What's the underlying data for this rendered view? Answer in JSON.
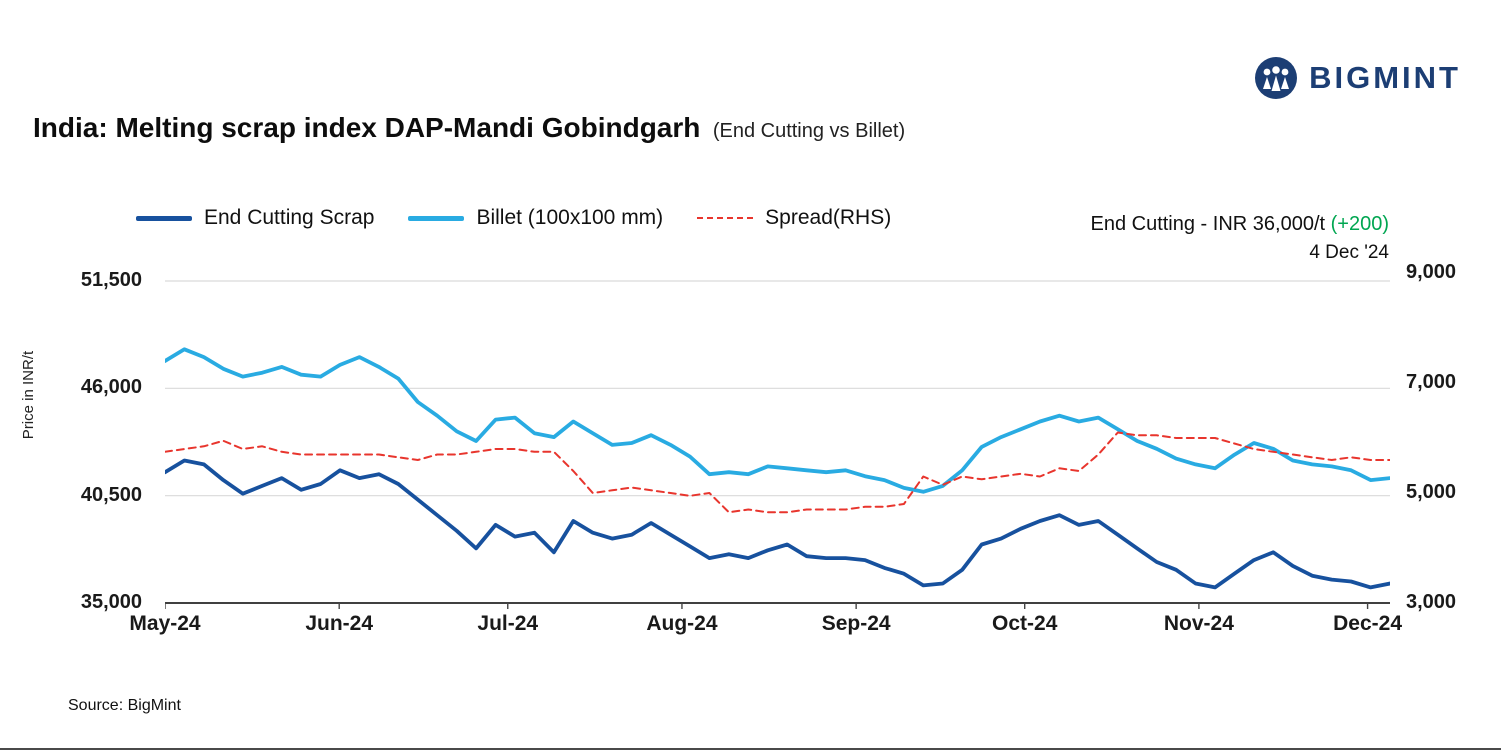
{
  "logo": {
    "text": "BIGMINT"
  },
  "header": {
    "title": "India: Melting scrap index DAP-Mandi Gobindgarh",
    "subtitle": "(End Cutting vs Billet)"
  },
  "legend": {
    "items": [
      {
        "label": "End Cutting Scrap"
      },
      {
        "label": "Billet (100x100 mm)"
      },
      {
        "label": "Spread(RHS)"
      }
    ]
  },
  "annotation": {
    "text": "End Cutting - INR 36,000/t ",
    "change": "(+200)",
    "change_color": "#00a651",
    "date": "4 Dec '24"
  },
  "axes": {
    "y_left_title": "Price in INR/t"
  },
  "footer": {
    "source": "Source: BigMint"
  },
  "colors": {
    "scrap_line": "#17519e",
    "billet_line": "#29abe2",
    "spread_line": "#e8352d",
    "grid": "#d9d9d9",
    "axis": "#000000",
    "logo_navy": "#1c3e74",
    "green": "#00a651"
  },
  "chart_data": {
    "type": "line",
    "title": "India: Melting scrap index DAP-Mandi Gobindgarh (End Cutting vs Billet)",
    "ylabel_left": "Price in INR/t",
    "grid": true,
    "legend_position": "top",
    "x_ticks": [
      {
        "label": "May-24",
        "f": 0.0
      },
      {
        "label": "Jun-24",
        "f": 0.1422
      },
      {
        "label": "Jul-24",
        "f": 0.2798
      },
      {
        "label": "Aug-24",
        "f": 0.422
      },
      {
        "label": "Sep-24",
        "f": 0.5642
      },
      {
        "label": "Oct-24",
        "f": 0.7018
      },
      {
        "label": "Nov-24",
        "f": 0.844
      },
      {
        "label": "Dec-24",
        "f": 0.9817
      }
    ],
    "y_left": {
      "min": 35000,
      "max": 51500,
      "ticks": [
        35000,
        40500,
        46000,
        51500
      ],
      "labels": [
        "35,000",
        "40,500",
        "46,000",
        "51,500"
      ]
    },
    "y_right": {
      "min": 3000,
      "max": 9000,
      "ticks": [
        3000,
        5000,
        7000,
        9000
      ],
      "labels": [
        "3,000",
        "5,000",
        "7,000",
        "9,000"
      ]
    },
    "series": [
      {
        "name": "End Cutting Scrap",
        "axis": "left",
        "color": "#17519e",
        "dash": null,
        "width": 3.8,
        "values": [
          41700,
          42300,
          42100,
          41300,
          40600,
          41000,
          41400,
          40800,
          41100,
          41800,
          41400,
          41600,
          41100,
          40300,
          39500,
          38700,
          37800,
          39000,
          38400,
          38600,
          37600,
          39200,
          38600,
          38300,
          38500,
          39100,
          38500,
          37900,
          37300,
          37500,
          37300,
          37700,
          38000,
          37400,
          37300,
          37300,
          37200,
          36800,
          36500,
          35900,
          36000,
          36700,
          38000,
          38300,
          38800,
          39200,
          39500,
          39000,
          39200,
          38500,
          37800,
          37100,
          36700,
          36000,
          35800,
          36500,
          37200,
          37600,
          36900,
          36400,
          36200,
          36100,
          35800,
          36000
        ]
      },
      {
        "name": "Billet (100x100 mm)",
        "axis": "left",
        "color": "#29abe2",
        "dash": null,
        "width": 3.8,
        "values": [
          47400,
          48000,
          47600,
          47000,
          46600,
          46800,
          47100,
          46700,
          46600,
          47200,
          47600,
          47100,
          46500,
          45300,
          44600,
          43800,
          43300,
          44400,
          44500,
          43700,
          43500,
          44300,
          43700,
          43100,
          43200,
          43600,
          43100,
          42500,
          41600,
          41700,
          41600,
          42000,
          41900,
          41800,
          41700,
          41800,
          41500,
          41300,
          40900,
          40700,
          41000,
          41800,
          43000,
          43500,
          43900,
          44300,
          44600,
          44300,
          44500,
          43900,
          43300,
          42900,
          42400,
          42100,
          41900,
          42600,
          43200,
          42900,
          42300,
          42100,
          42000,
          41800,
          41300,
          41400
        ]
      },
      {
        "name": "Spread(RHS)",
        "axis": "right",
        "color": "#e8352d",
        "dash": "7 5",
        "width": 2,
        "values": [
          5750,
          5800,
          5850,
          5950,
          5800,
          5850,
          5750,
          5700,
          5700,
          5700,
          5700,
          5700,
          5650,
          5600,
          5700,
          5700,
          5750,
          5800,
          5800,
          5750,
          5750,
          5400,
          5000,
          5050,
          5100,
          5050,
          5000,
          4950,
          5000,
          4650,
          4700,
          4650,
          4650,
          4700,
          4700,
          4700,
          4750,
          4750,
          4800,
          5300,
          5150,
          5300,
          5250,
          5300,
          5350,
          5300,
          5450,
          5400,
          5700,
          6100,
          6050,
          6050,
          6000,
          6000,
          6000,
          5900,
          5800,
          5750,
          5700,
          5650,
          5600,
          5650,
          5600,
          5600
        ]
      }
    ],
    "last_point_annotation": {
      "series": "End Cutting Scrap",
      "value": 36000,
      "change": 200,
      "date": "4 Dec '24"
    }
  }
}
